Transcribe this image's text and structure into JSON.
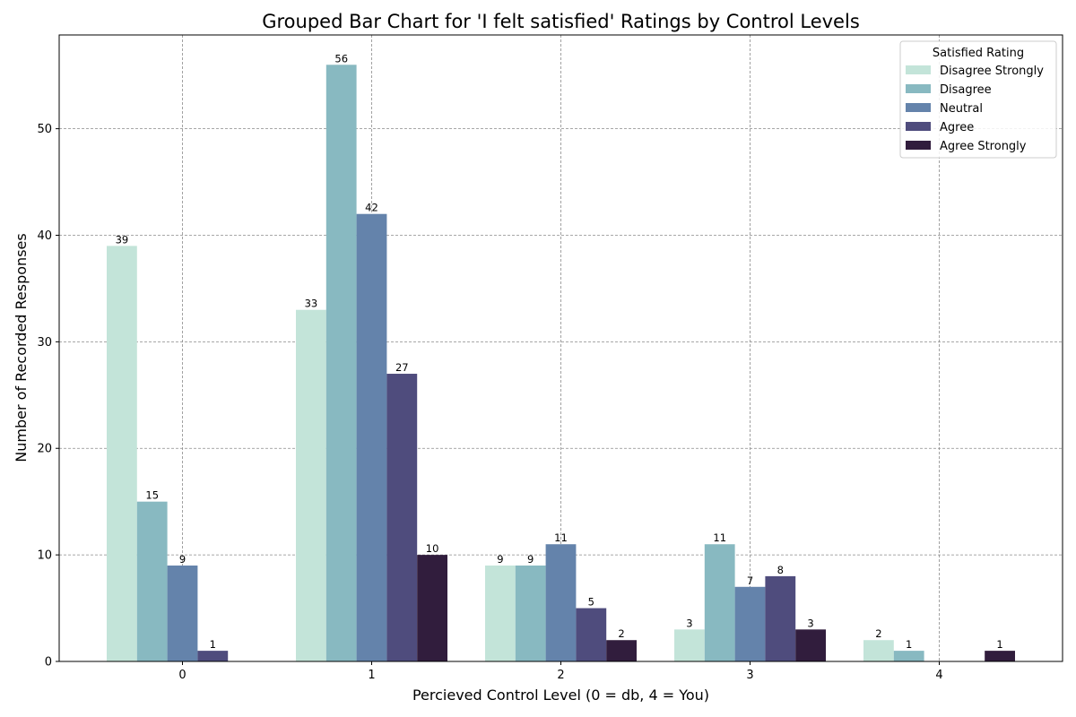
{
  "chart_data": {
    "type": "bar",
    "title": "Grouped Bar Chart for 'I felt satisfied' Ratings by Control Levels",
    "xlabel": "Percieved Control Level (0 = db, 4 = You)",
    "ylabel": "Number of Recorded Responses",
    "categories": [
      "0",
      "1",
      "2",
      "3",
      "4"
    ],
    "ylim": [
      0,
      58.8
    ],
    "yticks": [
      0,
      10,
      20,
      30,
      40,
      50
    ],
    "grid": true,
    "legend": {
      "title": "Satisfied Rating",
      "placement": "top-right"
    },
    "series": [
      {
        "name": "Disagree Strongly",
        "color": "#c3e4d9",
        "values": [
          39,
          33,
          9,
          3,
          2
        ]
      },
      {
        "name": "Disagree",
        "color": "#88b9c1",
        "values": [
          15,
          56,
          9,
          11,
          1
        ]
      },
      {
        "name": "Neutral",
        "color": "#6483ab",
        "values": [
          9,
          42,
          11,
          7,
          0
        ]
      },
      {
        "name": "Agree",
        "color": "#4f4c7d",
        "values": [
          1,
          27,
          5,
          8,
          0
        ]
      },
      {
        "name": "Agree Strongly",
        "color": "#311d3d",
        "values": [
          0,
          10,
          2,
          3,
          1
        ]
      }
    ]
  }
}
